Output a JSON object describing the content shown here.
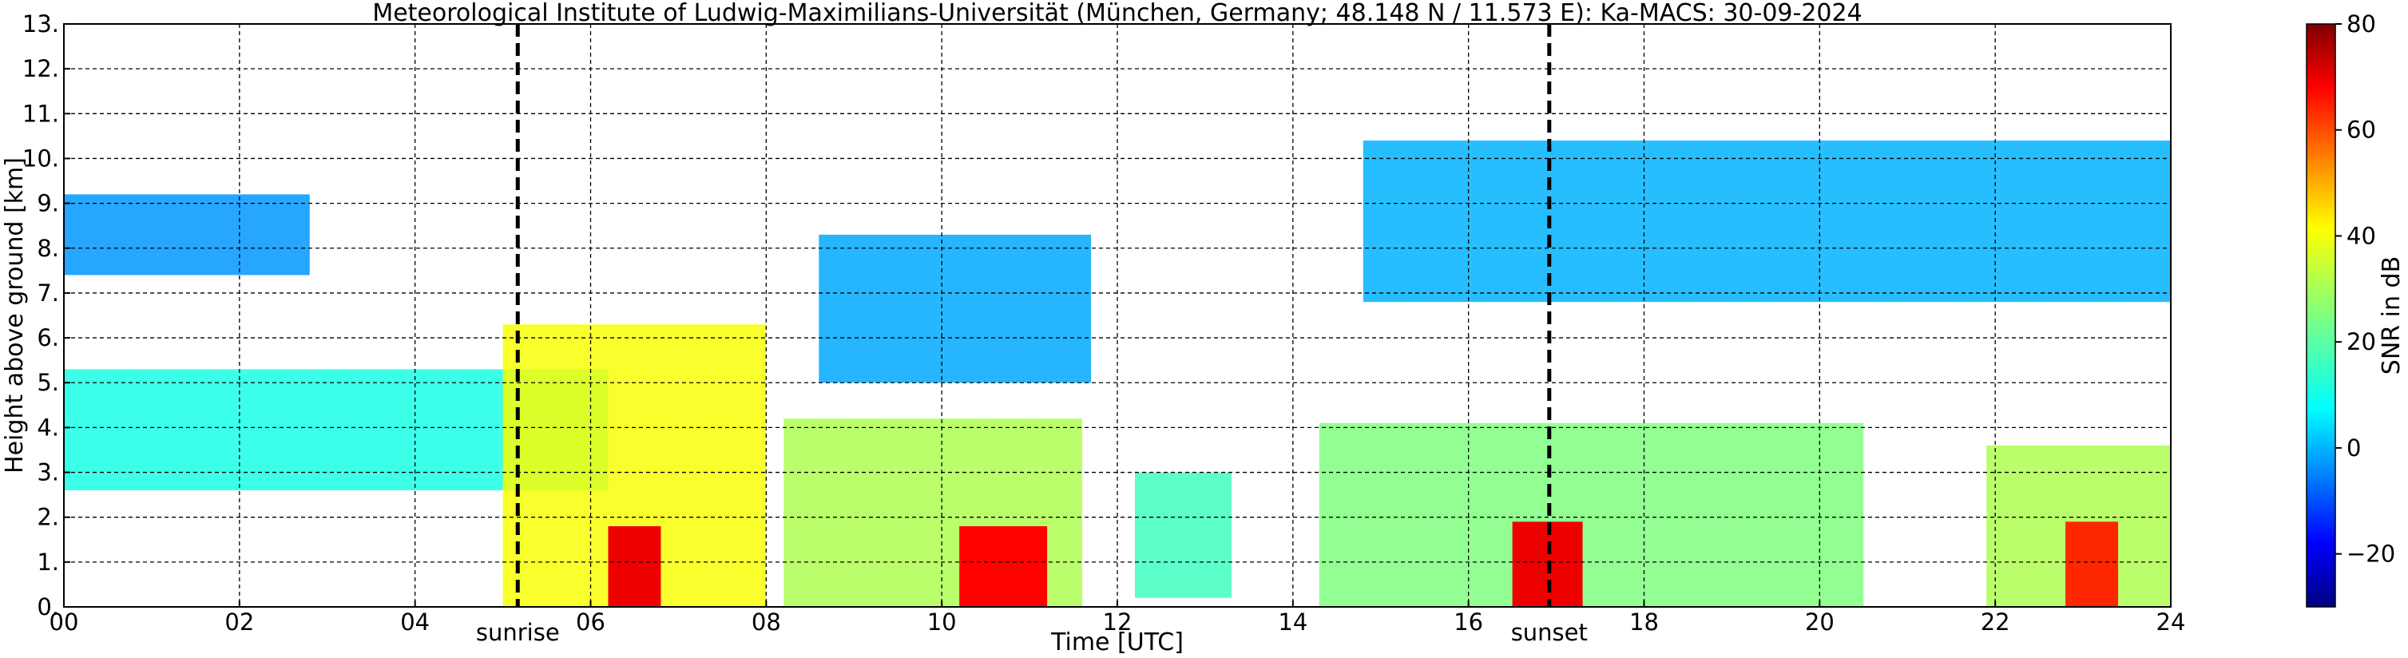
{
  "chart_data": {
    "type": "heatmap",
    "title": "Meteorological Institute of Ludwig-Maximilians-Universität (München, Germany; 48.148 N / 11.573 E):    Ka-MACS: 30-09-2024",
    "xlabel": "Time [UTC]",
    "ylabel": "Height above ground [km]",
    "xlim": [
      0,
      24
    ],
    "ylim": [
      0,
      13
    ],
    "x_ticks": [
      {
        "value": 0,
        "label": "00"
      },
      {
        "value": 2,
        "label": "02"
      },
      {
        "value": 4,
        "label": "04"
      },
      {
        "value": 6,
        "label": "06"
      },
      {
        "value": 8,
        "label": "08"
      },
      {
        "value": 10,
        "label": "10"
      },
      {
        "value": 12,
        "label": "12"
      },
      {
        "value": 14,
        "label": "14"
      },
      {
        "value": 16,
        "label": "16"
      },
      {
        "value": 18,
        "label": "18"
      },
      {
        "value": 20,
        "label": "20"
      },
      {
        "value": 22,
        "label": "22"
      },
      {
        "value": 24,
        "label": "24"
      }
    ],
    "y_ticks": [
      {
        "value": 0,
        "label": "0."
      },
      {
        "value": 1,
        "label": "1."
      },
      {
        "value": 2,
        "label": "2."
      },
      {
        "value": 3,
        "label": "3."
      },
      {
        "value": 4,
        "label": "4."
      },
      {
        "value": 5,
        "label": "5."
      },
      {
        "value": 6,
        "label": "6."
      },
      {
        "value": 7,
        "label": "7."
      },
      {
        "value": 8,
        "label": "8."
      },
      {
        "value": 9,
        "label": "9."
      },
      {
        "value": 10,
        "label": "10."
      },
      {
        "value": 11,
        "label": "11."
      },
      {
        "value": 12,
        "label": "12."
      },
      {
        "value": 13,
        "label": "13."
      }
    ],
    "grid": true,
    "annotations": [
      {
        "text": "sunrise",
        "x": 5.17
      },
      {
        "text": "sunset",
        "x": 16.92
      }
    ],
    "colorbar": {
      "label": "SNR in dB",
      "range": [
        -30,
        80
      ],
      "ticks": [
        {
          "value": 80,
          "label": "80"
        },
        {
          "value": 60,
          "label": "60"
        },
        {
          "value": 40,
          "label": "40"
        },
        {
          "value": 20,
          "label": "20"
        },
        {
          "value": 0,
          "label": "0"
        },
        {
          "value": -20,
          "label": "−20"
        }
      ],
      "colormap": "jet"
    },
    "cloud_regions": [
      {
        "name": "upper-morning-cirrus",
        "x0": 0.0,
        "x1": 2.8,
        "y0": 7.4,
        "y1": 9.2,
        "snr": 0
      },
      {
        "name": "upper-late-morning-cirrus",
        "x0": 8.6,
        "x1": 11.7,
        "y0": 5.0,
        "y1": 8.3,
        "snr": 2
      },
      {
        "name": "upper-evening-cirrus",
        "x0": 14.8,
        "x1": 24.0,
        "y0": 6.8,
        "y1": 10.4,
        "snr": 3
      },
      {
        "name": "mid-layer-morning",
        "x0": 0.0,
        "x1": 6.2,
        "y0": 2.6,
        "y1": 5.3,
        "snr": 14
      },
      {
        "name": "convective-morning",
        "x0": 5.0,
        "x1": 8.0,
        "y0": 0.0,
        "y1": 6.3,
        "snr": 38
      },
      {
        "name": "midday-cells",
        "x0": 8.2,
        "x1": 11.6,
        "y0": 0.0,
        "y1": 4.2,
        "snr": 30
      },
      {
        "name": "small-cells-noon",
        "x0": 12.2,
        "x1": 13.3,
        "y0": 0.2,
        "y1": 3.0,
        "snr": 18
      },
      {
        "name": "afternoon-layer",
        "x0": 14.3,
        "x1": 20.5,
        "y0": 0.0,
        "y1": 4.1,
        "snr": 25
      },
      {
        "name": "late-evening-cells",
        "x0": 21.9,
        "x1": 24.0,
        "y0": 0.0,
        "y1": 3.6,
        "snr": 30
      }
    ],
    "intense_cores": [
      {
        "x0": 6.2,
        "x1": 6.8,
        "y0": 0.0,
        "y1": 1.8,
        "snr": 68
      },
      {
        "x0": 10.2,
        "x1": 11.2,
        "y0": 0.0,
        "y1": 1.8,
        "snr": 66
      },
      {
        "x0": 16.5,
        "x1": 17.3,
        "y0": 0.0,
        "y1": 1.9,
        "snr": 68
      },
      {
        "x0": 22.8,
        "x1": 23.4,
        "y0": 0.0,
        "y1": 1.9,
        "snr": 62
      }
    ]
  }
}
